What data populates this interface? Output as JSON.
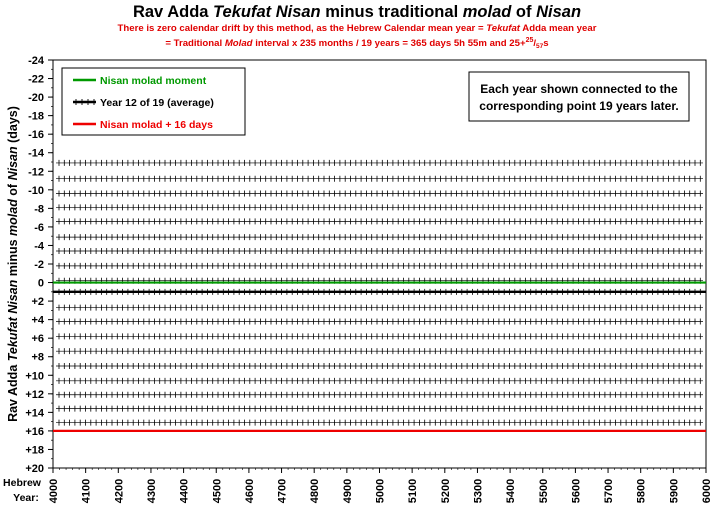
{
  "title": {
    "part1": "Rav Adda ",
    "part2": "Tekufat Nisan",
    "part3": "  minus traditional ",
    "part4": "molad",
    "part5": "  of ",
    "part6": "Nisan"
  },
  "subtitle1": {
    "a": "There is zero calendar drift by this method, as the Hebrew Calendar mean year = ",
    "b": "Tekufat",
    "c": " Adda mean year"
  },
  "subtitle2": {
    "a": "= Traditional ",
    "b": "Molad",
    "c": " interval x 235 months / 19 years = 365 days 5h 55m and 25+",
    "sup": "25",
    "slash": "/",
    "sub": "57",
    "d": "s"
  },
  "chart_data": {
    "type": "line",
    "title": "Rav Adda Tekufat Nisan  minus traditional molad  of Nisan",
    "ylabel": "Rav Adda Tekufat Nisan minus molad of Nisan (days)",
    "xlabel": "Hebrew Year:",
    "xlim": [
      4000,
      6000
    ],
    "ylim": [
      -24,
      20
    ],
    "y_inverted": true,
    "x_ticks": [
      "4000",
      "4100",
      "4200",
      "4300",
      "4400",
      "4500",
      "4600",
      "4700",
      "4800",
      "4900",
      "5000",
      "5100",
      "5200",
      "5300",
      "5400",
      "5500",
      "5600",
      "5700",
      "5800",
      "5900",
      "6000"
    ],
    "y_ticks": [
      "-24",
      "-22",
      "-20",
      "-18",
      "-16",
      "-14",
      "-12",
      "-10",
      "-8",
      "-6",
      "-4",
      "-2",
      "0",
      "+2",
      "+4",
      "+6",
      "+8",
      "+10",
      "+12",
      "+14",
      "+16",
      "+18",
      "+20"
    ],
    "grid": false,
    "legend": {
      "placement": "top-left",
      "entries": [
        {
          "label": "Nisan molad moment",
          "color": "#009900"
        },
        {
          "label": "Year 12 of 19 (average)",
          "color": "#000000"
        },
        {
          "label": "Nisan molad + 16 days",
          "color": "#ee0000"
        }
      ]
    },
    "annotation": "Each year shown connected to the corresponding point 19 years later.",
    "reference_lines": [
      {
        "name": "Nisan molad moment",
        "y": 0,
        "color": "#009900"
      },
      {
        "name": "Nisan molad + 16 days",
        "y": 16,
        "color": "#ee0000"
      }
    ],
    "series": [
      {
        "name": "Year 12 of 19 (average)",
        "y": 1.0,
        "color": "#000000",
        "bold": true
      }
    ],
    "year_series_y": [
      -12.9,
      -11.2,
      -9.6,
      -8.1,
      -6.6,
      -4.9,
      -3.4,
      -1.8,
      -0.2,
      2.7,
      4.2,
      5.8,
      7.4,
      9.0,
      10.6,
      12.1,
      13.6,
      15.1
    ]
  }
}
